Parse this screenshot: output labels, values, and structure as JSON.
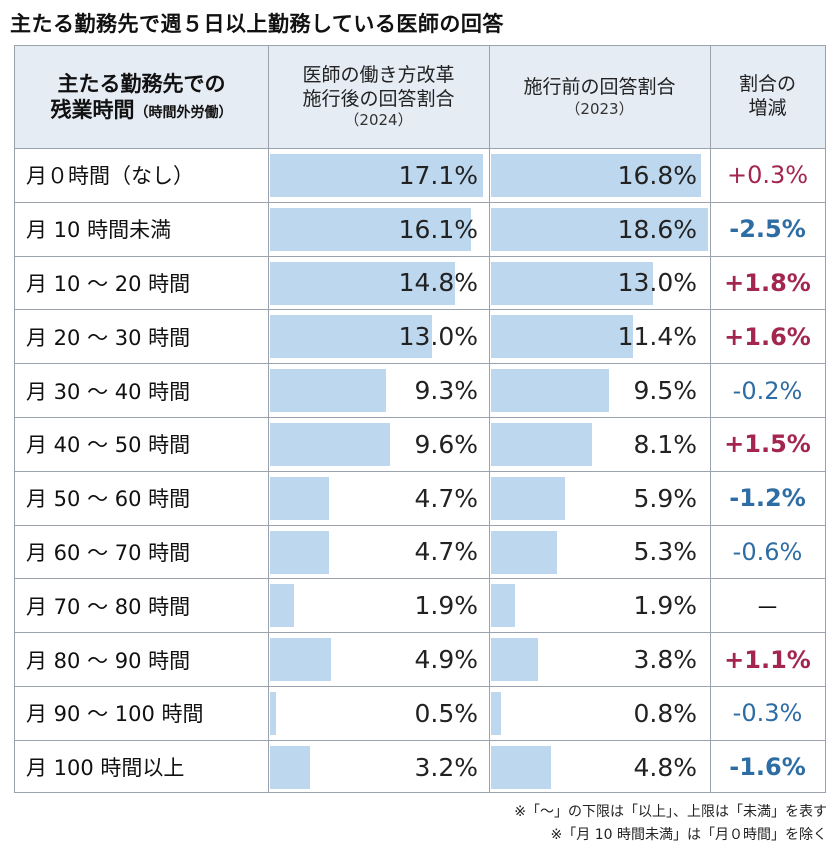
{
  "title": "主たる勤務先で週５日以上勤務している医師の回答",
  "header": {
    "col1_main_line1": "主たる勤務先での",
    "col1_main_line2": "残業時間",
    "col1_sub": "（時間外労働）",
    "col2_line1": "医師の働き方改革",
    "col2_line2": "施行後の回答割合",
    "col2_year": "（2024）",
    "col3_line1": "施行前の回答割合",
    "col3_year": "（2023）",
    "col4_line1": "割合の",
    "col4_line2": "増減"
  },
  "colors": {
    "bar": "#bdd7ee",
    "header_bg": "#e6ecf4",
    "increase": "#a3264f",
    "decrease": "#2e6da4"
  },
  "chart_data": {
    "type": "table",
    "title": "主たる勤務先で週５日以上勤務している医師の回答",
    "columns": [
      "主たる勤務先での残業時間（時間外労働）",
      "医師の働き方改革施行後の回答割合（2024）",
      "施行前の回答割合（2023）",
      "割合の増減"
    ],
    "rows": [
      {
        "label": "月０時間（なし）",
        "v2024": 17.1,
        "v2024_text": "17.1%",
        "v2023": 16.8,
        "v2023_text": "16.8%",
        "change": "+0.3%",
        "trend": "up",
        "bold": false
      },
      {
        "label": "月 10 時間未満",
        "v2024": 16.1,
        "v2024_text": "16.1%",
        "v2023": 18.6,
        "v2023_text": "18.6%",
        "change": "-2.5%",
        "trend": "down",
        "bold": true
      },
      {
        "label": "月 10 ～ 20 時間",
        "v2024": 14.8,
        "v2024_text": "14.8%",
        "v2023": 13.0,
        "v2023_text": "13.0%",
        "change": "+1.8%",
        "trend": "up",
        "bold": true
      },
      {
        "label": "月 20 ～ 30 時間",
        "v2024": 13.0,
        "v2024_text": "13.0%",
        "v2023": 11.4,
        "v2023_text": "11.4%",
        "change": "+1.6%",
        "trend": "up",
        "bold": true
      },
      {
        "label": "月 30 ～ 40 時間",
        "v2024": 9.3,
        "v2024_text": "9.3%",
        "v2023": 9.5,
        "v2023_text": "9.5%",
        "change": "-0.2%",
        "trend": "down",
        "bold": false
      },
      {
        "label": "月 40 ～ 50 時間",
        "v2024": 9.6,
        "v2024_text": "9.6%",
        "v2023": 8.1,
        "v2023_text": "8.1%",
        "change": "+1.5%",
        "trend": "up",
        "bold": true
      },
      {
        "label": "月 50 ～ 60 時間",
        "v2024": 4.7,
        "v2024_text": "4.7%",
        "v2023": 5.9,
        "v2023_text": "5.9%",
        "change": "-1.2%",
        "trend": "down",
        "bold": true
      },
      {
        "label": "月 60 ～ 70 時間",
        "v2024": 4.7,
        "v2024_text": "4.7%",
        "v2023": 5.3,
        "v2023_text": "5.3%",
        "change": "-0.6%",
        "trend": "down",
        "bold": false
      },
      {
        "label": "月 70 ～ 80 時間",
        "v2024": 1.9,
        "v2024_text": "1.9%",
        "v2023": 1.9,
        "v2023_text": "1.9%",
        "change": "－",
        "trend": "none",
        "bold": false
      },
      {
        "label": "月 80 ～ 90 時間",
        "v2024": 4.9,
        "v2024_text": "4.9%",
        "v2023": 3.8,
        "v2023_text": "3.8%",
        "change": "+1.1%",
        "trend": "up",
        "bold": true
      },
      {
        "label": "月 90 ～ 100 時間",
        "v2024": 0.5,
        "v2024_text": "0.5%",
        "v2023": 0.8,
        "v2023_text": "0.8%",
        "change": "-0.3%",
        "trend": "down",
        "bold": false
      },
      {
        "label": "月 100 時間以上",
        "v2024": 3.2,
        "v2024_text": "3.2%",
        "v2023": 4.8,
        "v2023_text": "4.8%",
        "change": "-1.6%",
        "trend": "down",
        "bold": true
      }
    ],
    "bar_scale_max": 18.6
  },
  "notes": [
    "※「～」の下限は「以上」、上限は「未満」を表す",
    "※「月 10 時間未満」は「月０時間」を除く"
  ]
}
